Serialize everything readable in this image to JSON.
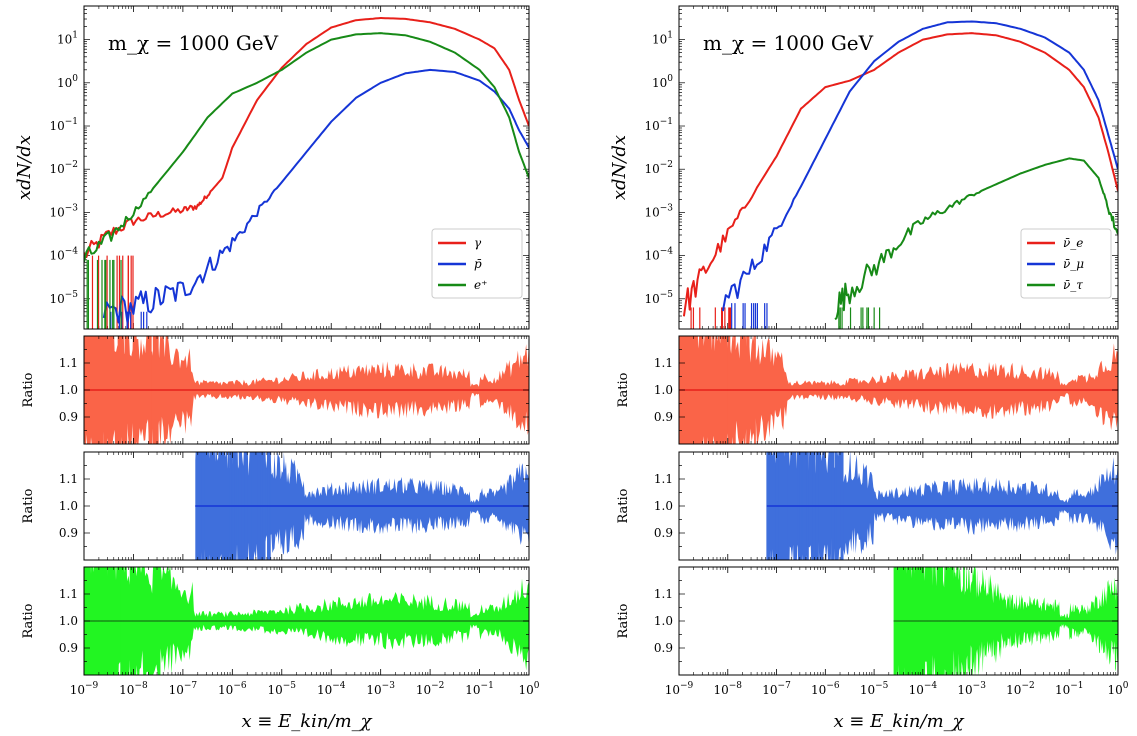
{
  "chart_data": [
    {
      "type": "line",
      "panel": "left-main",
      "annotation": "m_χ = 1000 GeV",
      "xlabel": "x ≡ E_kin/m_χ",
      "ylabel": "xdN/dx",
      "xscale": "log",
      "yscale": "log",
      "xlim": [
        1e-09,
        1
      ],
      "ylim": [
        2e-06,
        60
      ],
      "y_ticks": [
        "10^-5",
        "10^-4",
        "10^-3",
        "10^-2",
        "10^-1",
        "10^0",
        "10^1"
      ],
      "legend": {
        "placement": "lower-right",
        "entries": [
          "γ",
          "p̄",
          "e⁺"
        ]
      },
      "series": [
        {
          "name": "γ",
          "color": "#e8201a",
          "x": [
            -9,
            -8.5,
            -8,
            -7.5,
            -7,
            -6.7,
            -6.5,
            -6.2,
            -6,
            -5.5,
            -5,
            -4.5,
            -4,
            -3.5,
            -3,
            -2.5,
            -2,
            -1.5,
            -1,
            -0.7,
            -0.4,
            -0.2,
            0
          ],
          "log10_y": [
            -4.0,
            -3.5,
            -3.2,
            -3.05,
            -2.95,
            -2.85,
            -2.6,
            -2.2,
            -1.5,
            -0.4,
            0.35,
            0.9,
            1.28,
            1.45,
            1.5,
            1.48,
            1.4,
            1.25,
            1.0,
            0.8,
            0.3,
            -0.4,
            -1.0
          ]
        },
        {
          "name": "p̄",
          "color": "#1535d6",
          "x": [
            -8.6,
            -8,
            -7.5,
            -7,
            -6.5,
            -6,
            -5.5,
            -5,
            -4.5,
            -4,
            -3.5,
            -3,
            -2.5,
            -2,
            -1.5,
            -1,
            -0.7,
            -0.4,
            -0.2,
            0
          ],
          "log10_y": [
            -5.3,
            -5.2,
            -5.0,
            -4.8,
            -4.3,
            -3.7,
            -3.0,
            -2.3,
            -1.6,
            -0.9,
            -0.35,
            0.0,
            0.22,
            0.3,
            0.25,
            0.05,
            -0.2,
            -0.6,
            -1.1,
            -1.5
          ]
        },
        {
          "name": "e⁺",
          "color": "#178a17",
          "x": [
            -9,
            -8.5,
            -8,
            -7.5,
            -7,
            -6.5,
            -6,
            -5.5,
            -5,
            -4.5,
            -4,
            -3.5,
            -3,
            -2.5,
            -2,
            -1.5,
            -1,
            -0.7,
            -0.4,
            -0.2,
            0
          ],
          "log10_y": [
            -4.1,
            -3.6,
            -3.0,
            -2.3,
            -1.6,
            -0.8,
            -0.25,
            0.0,
            0.3,
            0.7,
            1.0,
            1.12,
            1.15,
            1.1,
            0.95,
            0.7,
            0.3,
            -0.1,
            -0.8,
            -1.6,
            -2.2
          ]
        }
      ]
    },
    {
      "type": "line",
      "panel": "right-main",
      "annotation": "m_χ = 1000 GeV",
      "xlabel": "x ≡ E_kin/m_χ",
      "ylabel": "xdN/dx",
      "xscale": "log",
      "yscale": "log",
      "xlim": [
        1e-09,
        1
      ],
      "ylim": [
        2e-06,
        60
      ],
      "y_ticks": [
        "10^-5",
        "10^-4",
        "10^-3",
        "10^-2",
        "10^-1",
        "10^0",
        "10^1"
      ],
      "legend": {
        "placement": "lower-right",
        "entries": [
          "ν̄_e",
          "ν̄_μ",
          "ν̄_τ"
        ]
      },
      "series": [
        {
          "name": "ν̄_e",
          "color": "#e8201a",
          "x": [
            -8.9,
            -8.5,
            -8,
            -7.5,
            -7,
            -6.5,
            -6,
            -5.5,
            -5,
            -4.5,
            -4,
            -3.5,
            -3,
            -2.5,
            -2,
            -1.5,
            -1,
            -0.7,
            -0.4,
            -0.2,
            0
          ],
          "log10_y": [
            -5.2,
            -4.4,
            -3.5,
            -2.6,
            -1.7,
            -0.6,
            -0.1,
            0.05,
            0.3,
            0.7,
            1.0,
            1.12,
            1.15,
            1.1,
            0.95,
            0.7,
            0.3,
            -0.1,
            -0.8,
            -1.6,
            -2.5
          ]
        },
        {
          "name": "ν̄_μ",
          "color": "#1535d6",
          "x": [
            -8.1,
            -7.5,
            -7,
            -6.5,
            -6,
            -5.5,
            -5,
            -4.5,
            -4,
            -3.5,
            -3,
            -2.5,
            -2,
            -1.5,
            -1,
            -0.7,
            -0.4,
            -0.2,
            0
          ],
          "log10_y": [
            -5.1,
            -4.3,
            -3.4,
            -2.4,
            -1.3,
            -0.2,
            0.5,
            0.95,
            1.25,
            1.4,
            1.42,
            1.38,
            1.25,
            1.05,
            0.7,
            0.3,
            -0.4,
            -1.2,
            -2.0
          ]
        },
        {
          "name": "ν̄_τ",
          "color": "#178a17",
          "x": [
            -5.8,
            -5.5,
            -5,
            -4.5,
            -4,
            -3.5,
            -3,
            -2.5,
            -2,
            -1.5,
            -1,
            -0.7,
            -0.4,
            -0.2,
            0
          ],
          "log10_y": [
            -5.2,
            -4.8,
            -4.3,
            -3.7,
            -3.2,
            -2.9,
            -2.6,
            -2.35,
            -2.1,
            -1.9,
            -1.75,
            -1.8,
            -2.2,
            -2.9,
            -3.5
          ]
        }
      ]
    },
    {
      "type": "area",
      "panel": "ratio",
      "ylabel": "Ratio",
      "ylim": [
        0.8,
        1.2
      ],
      "y_ticks": [
        "0.9",
        "1.0",
        "1.1"
      ],
      "x_ticks": [
        "10^-9",
        "10^-8",
        "10^-7",
        "10^-6",
        "10^-5",
        "10^-4",
        "10^-3",
        "10^-2",
        "10^-1",
        "10^0"
      ],
      "panels": [
        {
          "column": "left",
          "row": 1,
          "color": "#fa6448",
          "line": "#e8201a",
          "x_start": -9,
          "band": "noisy-envelope"
        },
        {
          "column": "left",
          "row": 2,
          "color": "#3f6fdc",
          "line": "#1535d6",
          "x_start": -6.75,
          "band": "noisy-envelope"
        },
        {
          "column": "left",
          "row": 3,
          "color": "#22f522",
          "line": "#178a17",
          "x_start": -9,
          "band": "noisy-envelope"
        },
        {
          "column": "right",
          "row": 1,
          "color": "#fa6448",
          "line": "#e8201a",
          "x_start": -9,
          "band": "noisy-envelope"
        },
        {
          "column": "right",
          "row": 2,
          "color": "#3f6fdc",
          "line": "#1535d6",
          "x_start": -7.2,
          "band": "noisy-envelope"
        },
        {
          "column": "right",
          "row": 3,
          "color": "#22f522",
          "line": "#178a17",
          "x_start": -4.6,
          "band": "noisy-envelope"
        }
      ]
    }
  ]
}
